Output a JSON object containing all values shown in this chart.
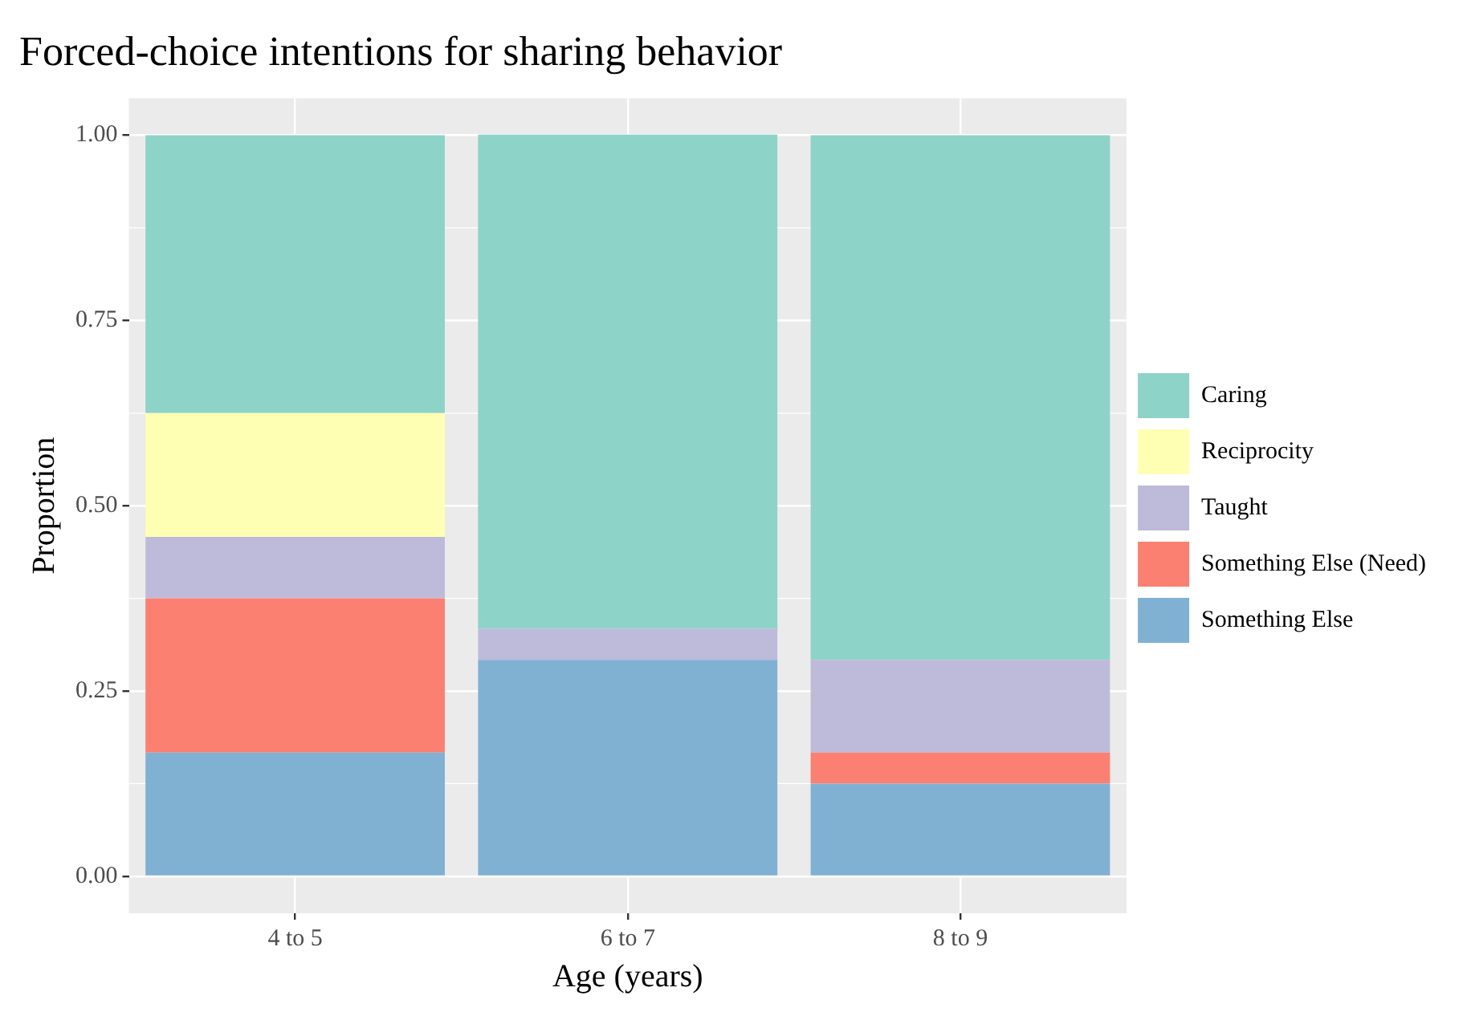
{
  "chart_data": {
    "type": "bar",
    "title": "Forced-choice intentions for sharing behavior",
    "xlabel": "Age (years)",
    "ylabel": "Proportion",
    "categories": [
      "4 to 5",
      "6 to 7",
      "8 to 9"
    ],
    "stacked": true,
    "series": [
      {
        "name": "Something Else",
        "color": "#80b1d3",
        "values": [
          0.167,
          0.292,
          0.125
        ]
      },
      {
        "name": "Something Else (Need)",
        "color": "#fb8072",
        "values": [
          0.208,
          0,
          0.042
        ]
      },
      {
        "name": "Taught",
        "color": "#bebada",
        "values": [
          0.083,
          0.042,
          0.125
        ]
      },
      {
        "name": "Reciprocity",
        "color": "#ffffb3",
        "values": [
          0.167,
          0,
          0
        ]
      },
      {
        "name": "Caring",
        "color": "#8dd3c7",
        "values": [
          0.375,
          0.667,
          0.708
        ]
      }
    ],
    "ylim": [
      -0.05,
      1.05
    ],
    "yticks": [
      {
        "value": 0,
        "label": "0.00"
      },
      {
        "value": 0.25,
        "label": "0.25"
      },
      {
        "value": 0.5,
        "label": "0.50"
      },
      {
        "value": 0.75,
        "label": "0.75"
      },
      {
        "value": 1,
        "label": "1.00"
      }
    ],
    "grid": true,
    "legend": "right"
  }
}
